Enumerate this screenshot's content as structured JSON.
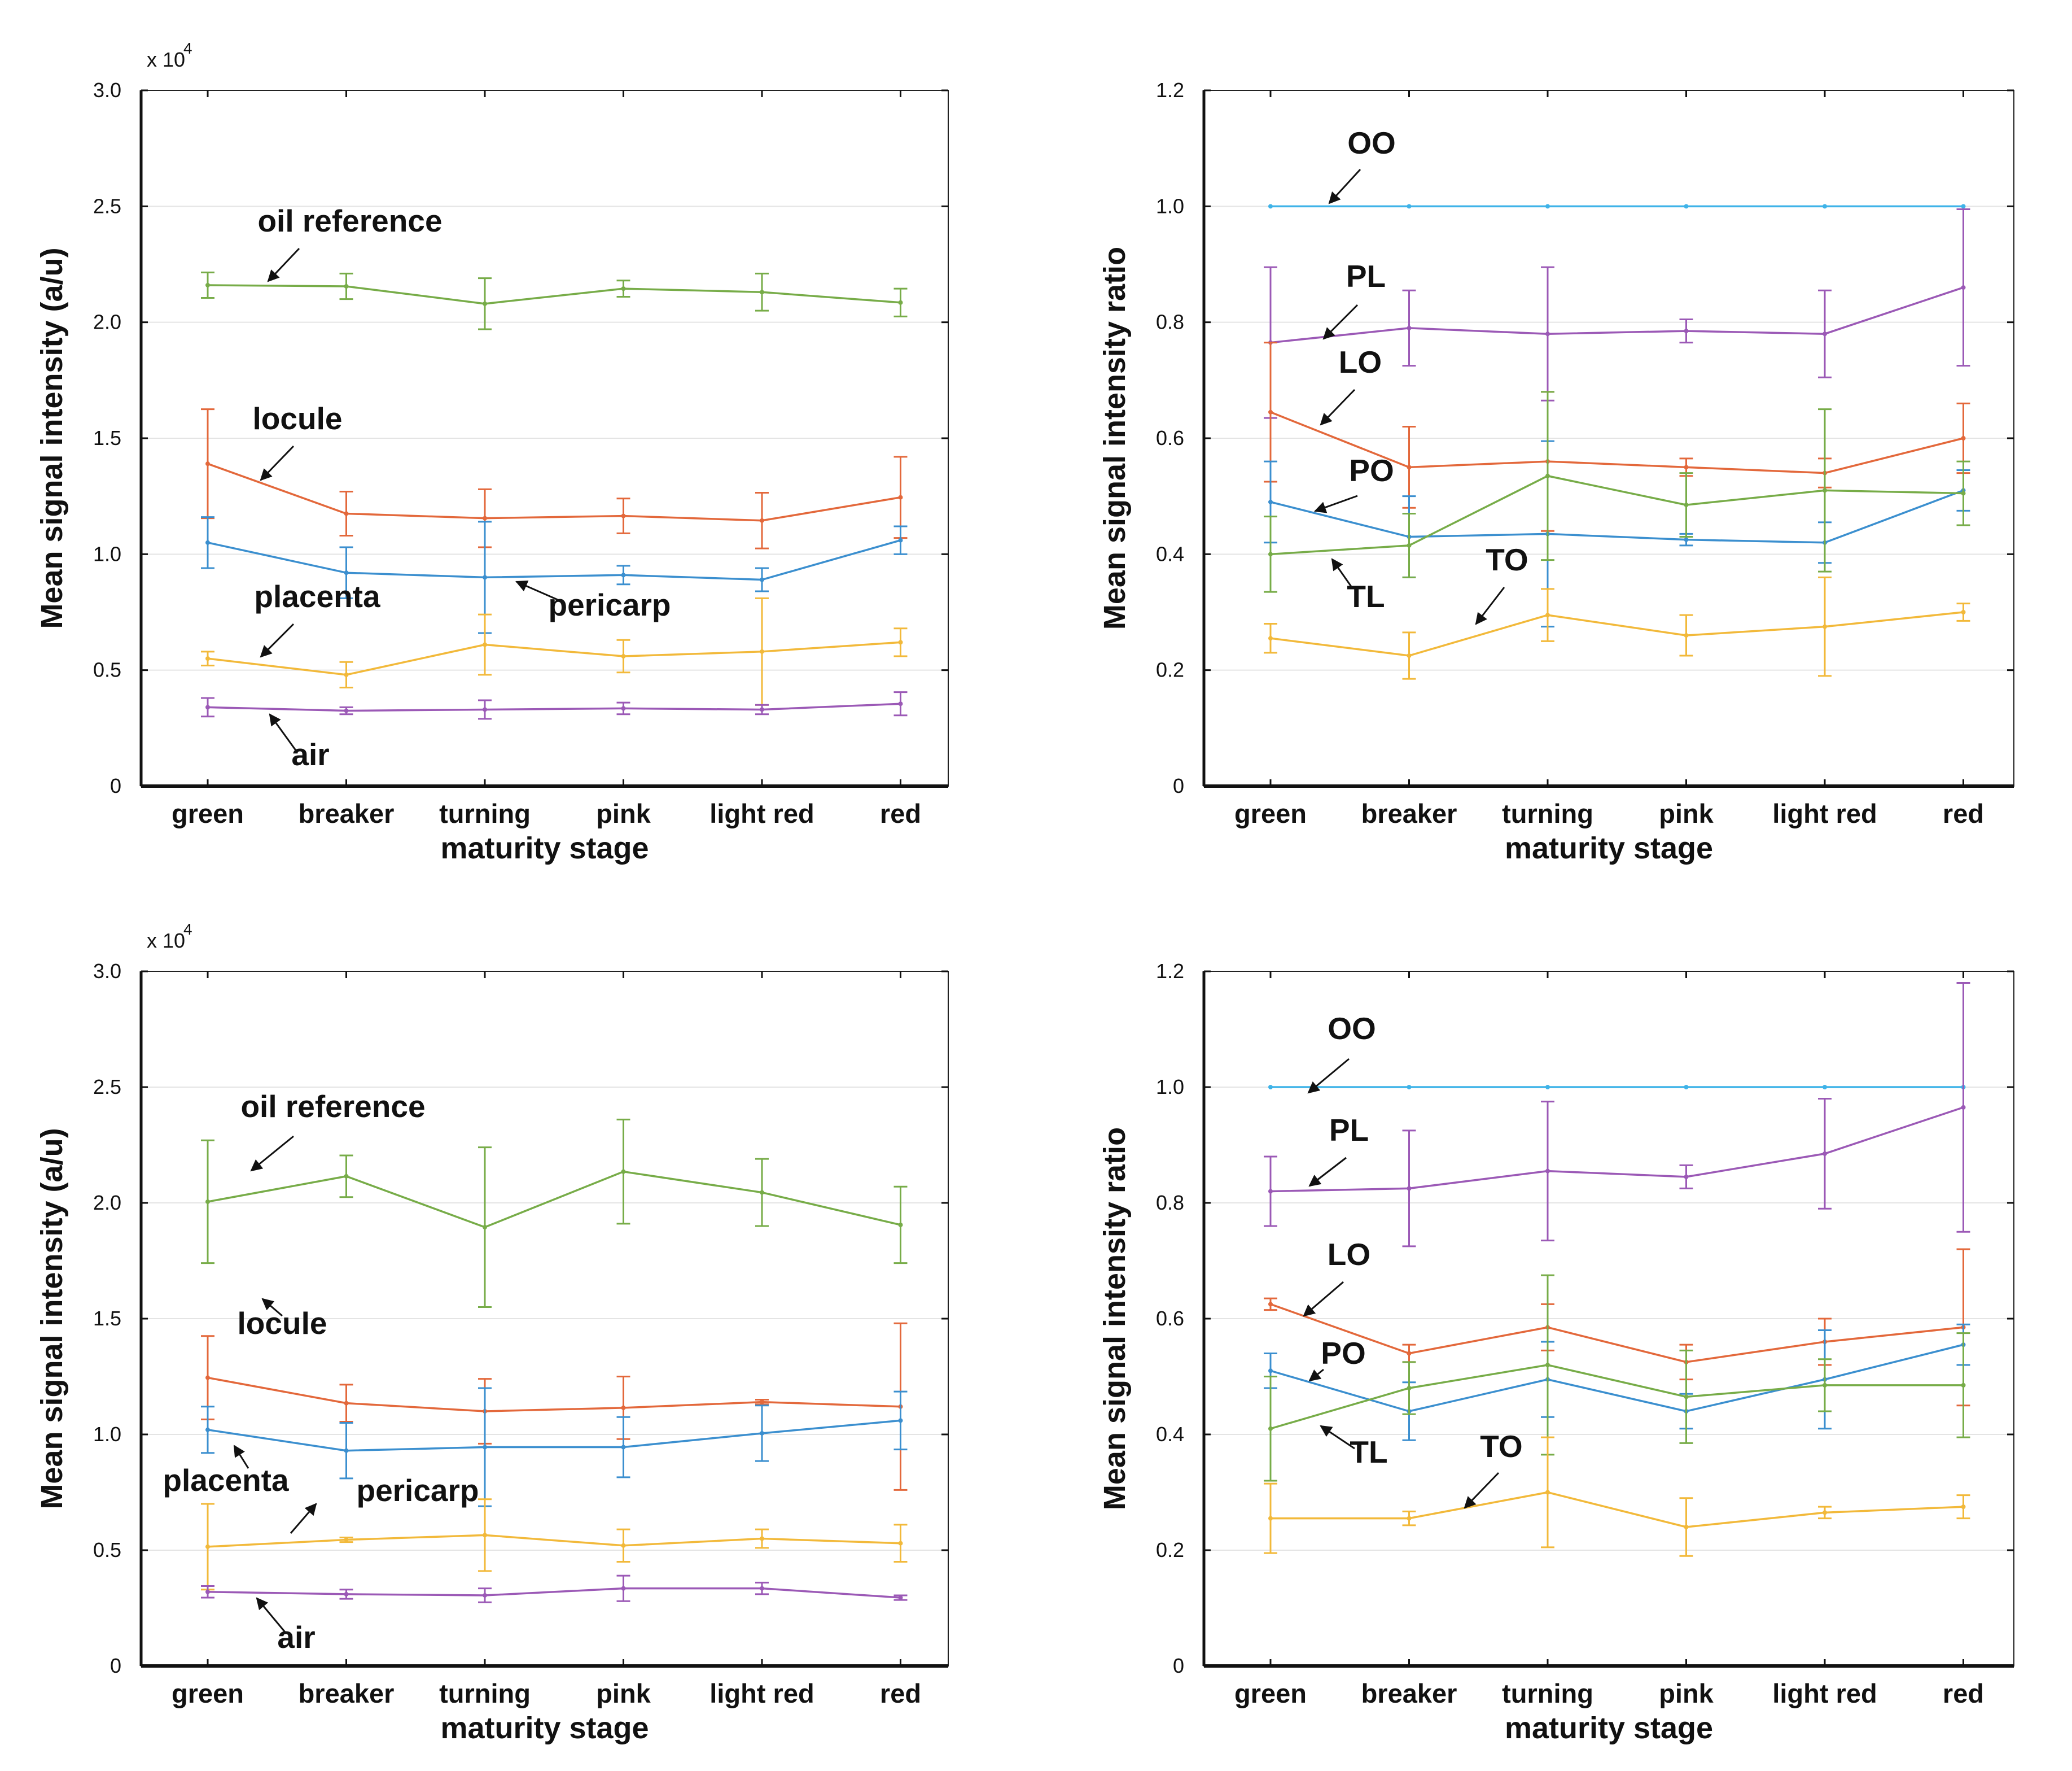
{
  "chart_data": [
    {
      "type": "line",
      "panel": "top-left",
      "xlabel": "maturity stage",
      "ylabel": "Mean signal intensity (a/u)",
      "ylim": [
        0,
        30000
      ],
      "y_scale_label": "x 10",
      "y_scale_exp": "4",
      "ytick_labels": [
        "0",
        "0.5",
        "1.0",
        "1.5",
        "2.0",
        "2.5",
        "3.0"
      ],
      "grid": true,
      "categories": [
        "green",
        "breaker",
        "turning",
        "pink",
        "light red",
        "red"
      ],
      "series": [
        {
          "name": "oil reference",
          "color": "#77ac48",
          "values": [
            21600,
            21550,
            20800,
            21450,
            21300,
            20850
          ],
          "errors": [
            550,
            550,
            1100,
            350,
            800,
            600
          ]
        },
        {
          "name": "locule",
          "color": "#e3683b",
          "values": [
            13900,
            11750,
            11550,
            11650,
            11450,
            12450
          ],
          "errors": [
            2350,
            950,
            1250,
            750,
            1200,
            1750
          ]
        },
        {
          "name": "pericarp",
          "color": "#3b8fcf",
          "values": [
            10500,
            9200,
            9000,
            9100,
            8900,
            10600
          ],
          "errors": [
            1100,
            1100,
            2400,
            400,
            500,
            600
          ]
        },
        {
          "name": "placenta",
          "color": "#f2b93a",
          "values": [
            5500,
            4800,
            6100,
            5600,
            5800,
            6200
          ],
          "errors": [
            300,
            550,
            1300,
            700,
            2300,
            600
          ]
        },
        {
          "name": "air",
          "color": "#9b59b6",
          "values": [
            3400,
            3250,
            3300,
            3350,
            3300,
            3550
          ],
          "errors": [
            400,
            150,
            400,
            250,
            200,
            500
          ]
        }
      ],
      "annotations": [
        "oil reference",
        "locule",
        "placenta",
        "pericarp",
        "air"
      ]
    },
    {
      "type": "line",
      "panel": "top-right",
      "xlabel": "maturity stage",
      "ylabel": "Mean signal intensity ratio",
      "ylim": [
        0,
        1.2
      ],
      "ytick_labels": [
        "0",
        "0.2",
        "0.4",
        "0.6",
        "0.8",
        "1.0",
        "1.2"
      ],
      "grid": true,
      "categories": [
        "green",
        "breaker",
        "turning",
        "pink",
        "light red",
        "red"
      ],
      "series": [
        {
          "name": "OO",
          "color": "#3fb3e8",
          "values": [
            1.0,
            1.0,
            1.0,
            1.0,
            1.0,
            1.0
          ],
          "errors": [
            0,
            0,
            0,
            0,
            0,
            0
          ]
        },
        {
          "name": "PL",
          "color": "#9b59b6",
          "values": [
            0.765,
            0.79,
            0.78,
            0.785,
            0.78,
            0.86
          ],
          "errors": [
            0.13,
            0.065,
            0.115,
            0.02,
            0.075,
            0.135
          ]
        },
        {
          "name": "LO",
          "color": "#e3683b",
          "values": [
            0.645,
            0.55,
            0.56,
            0.55,
            0.54,
            0.6
          ],
          "errors": [
            0.12,
            0.07,
            0.12,
            0.015,
            0.025,
            0.06
          ]
        },
        {
          "name": "PO",
          "color": "#3b8fcf",
          "values": [
            0.49,
            0.43,
            0.435,
            0.425,
            0.42,
            0.51
          ],
          "errors": [
            0.07,
            0.07,
            0.16,
            0.01,
            0.035,
            0.035
          ]
        },
        {
          "name": "TL",
          "color": "#77ac48",
          "values": [
            0.4,
            0.415,
            0.535,
            0.485,
            0.51,
            0.505
          ],
          "errors": [
            0.065,
            0.055,
            0.145,
            0.055,
            0.14,
            0.055
          ]
        },
        {
          "name": "TO",
          "color": "#f2b93a",
          "values": [
            0.255,
            0.225,
            0.295,
            0.26,
            0.275,
            0.3
          ],
          "errors": [
            0.025,
            0.04,
            0.045,
            0.035,
            0.085,
            0.015
          ]
        }
      ],
      "annotations": [
        "OO",
        "PL",
        "LO",
        "PO",
        "TL",
        "TO"
      ]
    },
    {
      "type": "line",
      "panel": "bottom-left",
      "xlabel": "maturity stage",
      "ylabel": "Mean signal intensity (a/u)",
      "ylim": [
        0,
        30000
      ],
      "y_scale_label": "x 10",
      "y_scale_exp": "4",
      "ytick_labels": [
        "0",
        "0.5",
        "1.0",
        "1.5",
        "2.0",
        "2.5",
        "3.0"
      ],
      "grid": true,
      "categories": [
        "green",
        "breaker",
        "turning",
        "pink",
        "light red",
        "red"
      ],
      "series": [
        {
          "name": "oil reference",
          "color": "#77ac48",
          "values": [
            20050,
            21150,
            18950,
            21350,
            20450,
            19050
          ],
          "errors": [
            2650,
            900,
            3450,
            2250,
            1450,
            1650
          ]
        },
        {
          "name": "locule",
          "color": "#e3683b",
          "values": [
            12450,
            11350,
            11000,
            11150,
            11400,
            11200
          ],
          "errors": [
            1800,
            800,
            1400,
            1350,
            100,
            3600
          ]
        },
        {
          "name": "pericarp",
          "color": "#3b8fcf",
          "values": [
            10200,
            9300,
            9450,
            9450,
            10050,
            10600
          ],
          "errors": [
            1000,
            1200,
            2550,
            1300,
            1200,
            1250
          ]
        },
        {
          "name": "placenta",
          "color": "#f2b93a",
          "values": [
            5150,
            5450,
            5650,
            5200,
            5500,
            5300
          ],
          "errors": [
            1850,
            100,
            1550,
            700,
            400,
            800
          ]
        },
        {
          "name": "air",
          "color": "#9b59b6",
          "values": [
            3200,
            3100,
            3050,
            3350,
            3350,
            2950
          ],
          "errors": [
            250,
            200,
            300,
            550,
            250,
            100
          ]
        }
      ],
      "annotations": [
        "oil reference",
        "locule",
        "pericarp",
        "placenta",
        "air"
      ]
    },
    {
      "type": "line",
      "panel": "bottom-right",
      "xlabel": "maturity stage",
      "ylabel": "Mean signal intensity ratio",
      "ylim": [
        0,
        1.2
      ],
      "ytick_labels": [
        "0",
        "0.2",
        "0.4",
        "0.6",
        "0.8",
        "1.0",
        "1.2"
      ],
      "grid": true,
      "categories": [
        "green",
        "breaker",
        "turning",
        "pink",
        "light red",
        "red"
      ],
      "series": [
        {
          "name": "OO",
          "color": "#3fb3e8",
          "values": [
            1.0,
            1.0,
            1.0,
            1.0,
            1.0,
            1.0
          ],
          "errors": [
            0,
            0,
            0,
            0,
            0,
            0
          ]
        },
        {
          "name": "PL",
          "color": "#9b59b6",
          "values": [
            0.82,
            0.825,
            0.855,
            0.845,
            0.885,
            0.965
          ],
          "errors": [
            0.06,
            0.1,
            0.12,
            0.02,
            0.095,
            0.215
          ]
        },
        {
          "name": "LO",
          "color": "#e3683b",
          "values": [
            0.625,
            0.54,
            0.585,
            0.525,
            0.56,
            0.585
          ],
          "errors": [
            0.01,
            0.015,
            0.04,
            0.03,
            0.04,
            0.135
          ]
        },
        {
          "name": "PO",
          "color": "#3b8fcf",
          "values": [
            0.51,
            0.44,
            0.495,
            0.44,
            0.495,
            0.555
          ],
          "errors": [
            0.03,
            0.05,
            0.065,
            0.03,
            0.085,
            0.035
          ]
        },
        {
          "name": "TL",
          "color": "#77ac48",
          "values": [
            0.41,
            0.48,
            0.52,
            0.465,
            0.485,
            0.485
          ],
          "errors": [
            0.09,
            0.045,
            0.155,
            0.08,
            0.045,
            0.09
          ]
        },
        {
          "name": "TO",
          "color": "#f2b93a",
          "values": [
            0.255,
            0.255,
            0.3,
            0.24,
            0.265,
            0.275
          ],
          "errors": [
            0.06,
            0.012,
            0.095,
            0.05,
            0.01,
            0.02
          ]
        }
      ],
      "annotations": [
        "OO",
        "PL",
        "LO",
        "PO",
        "TL",
        "TO"
      ]
    }
  ]
}
